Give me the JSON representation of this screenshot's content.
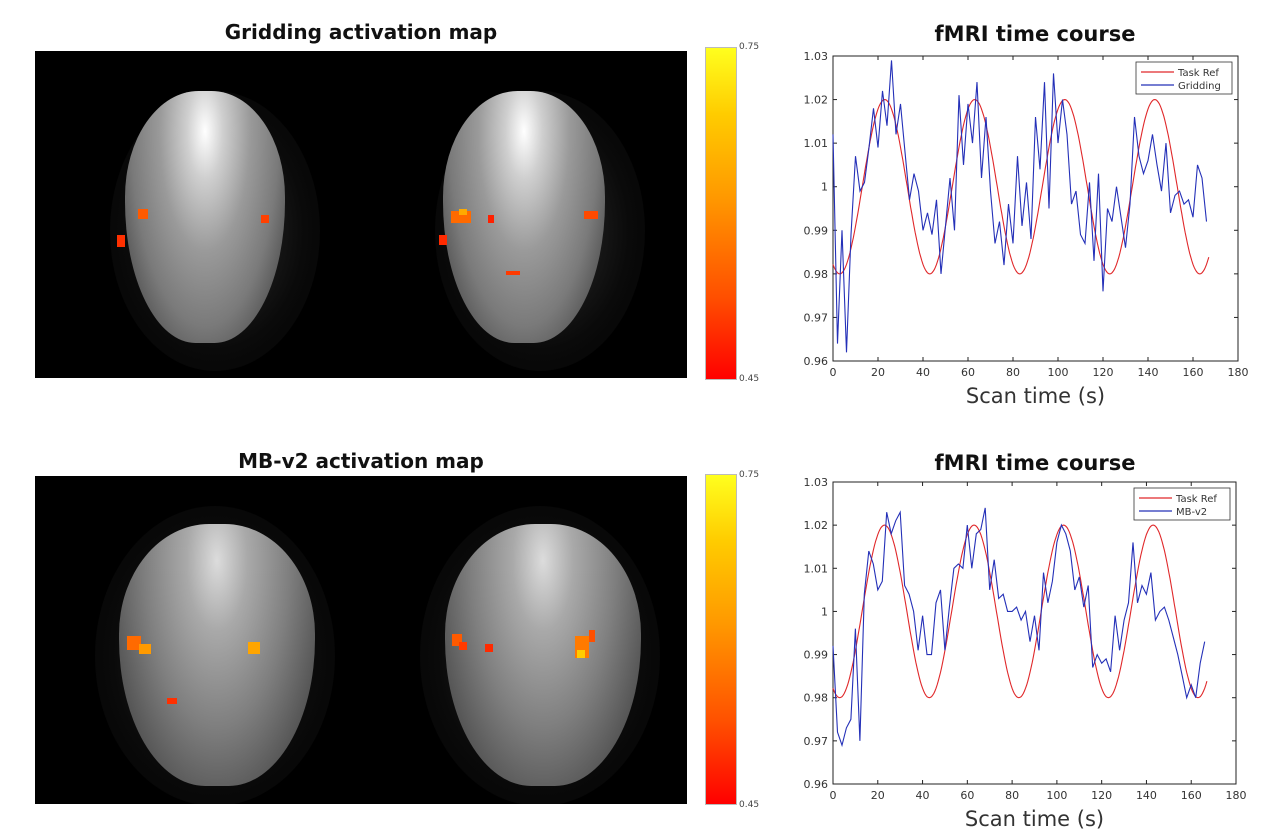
{
  "top": {
    "map_title": "Gridding activation map",
    "colorbar": {
      "max": "0.75",
      "min": "0.45"
    },
    "plot_title": "fMRI time course",
    "xlabel": "Scan time (s)"
  },
  "bottom": {
    "map_title": "MB-v2 activation map",
    "colorbar": {
      "max": "0.75",
      "min": "0.45"
    },
    "plot_title": "fMRI time course",
    "xlabel": "Scan time (s)"
  },
  "colors": {
    "task_ref": "#e0282a",
    "signal": "#2430b8",
    "cb_top": "#ffff1e",
    "cb_bottom": "#ff0000"
  },
  "chart_data": [
    {
      "type": "line",
      "title": "fMRI time course",
      "xlabel": "Scan time (s)",
      "ylabel": "",
      "xlim": [
        0,
        180
      ],
      "ylim": [
        0.96,
        1.03
      ],
      "xticks": [
        0,
        20,
        40,
        60,
        80,
        100,
        120,
        140,
        160,
        180
      ],
      "yticks": [
        "0.96",
        "0.97",
        "0.98",
        "0.99",
        "1",
        "1.01",
        "1.02",
        "1.03"
      ],
      "legend_position": "top-right",
      "series": [
        {
          "name": "Task Ref",
          "color": "#e0282a",
          "kind": "sine",
          "mean": 1.0,
          "amp": 0.02,
          "period": 40,
          "phase_peak": 23,
          "x_end": 167
        },
        {
          "name": "Gridding",
          "color": "#2430b8",
          "x": [
            0,
            2,
            4,
            6,
            8,
            10,
            12,
            14,
            16,
            18,
            20,
            22,
            24,
            26,
            28,
            30,
            32,
            34,
            36,
            38,
            40,
            42,
            44,
            46,
            48,
            50,
            52,
            54,
            56,
            58,
            60,
            62,
            64,
            66,
            68,
            70,
            72,
            74,
            76,
            78,
            80,
            82,
            84,
            86,
            88,
            90,
            92,
            94,
            96,
            98,
            100,
            102,
            104,
            106,
            108,
            110,
            112,
            114,
            116,
            118,
            120,
            122,
            124,
            126,
            128,
            130,
            132,
            134,
            136,
            138,
            140,
            142,
            144,
            146,
            148,
            150,
            152,
            154,
            156,
            158,
            160,
            162,
            164,
            166
          ],
          "y": [
            1.012,
            0.964,
            0.99,
            0.962,
            0.989,
            1.007,
            0.999,
            1.001,
            1.009,
            1.018,
            1.009,
            1.022,
            1.014,
            1.029,
            1.012,
            1.019,
            1.008,
            0.997,
            1.003,
            0.999,
            0.99,
            0.994,
            0.989,
            0.997,
            0.98,
            0.991,
            1.002,
            0.99,
            1.021,
            1.005,
            1.019,
            1.01,
            1.024,
            1.002,
            1.016,
            0.999,
            0.987,
            0.992,
            0.982,
            0.996,
            0.987,
            1.007,
            0.991,
            1.001,
            0.988,
            1.016,
            1.004,
            1.024,
            0.995,
            1.026,
            1.01,
            1.02,
            1.012,
            0.996,
            0.999,
            0.989,
            0.987,
            1.001,
            0.983,
            1.003,
            0.976,
            0.995,
            0.992,
            1.0,
            0.993,
            0.986,
            0.996,
            1.016,
            1.007,
            1.003,
            1.006,
            1.012,
            1.005,
            0.999,
            1.01,
            0.994,
            0.998,
            0.999,
            0.996,
            0.997,
            0.993,
            1.005,
            1.002,
            0.992
          ]
        }
      ]
    },
    {
      "type": "line",
      "title": "fMRI time course",
      "xlabel": "Scan time (s)",
      "ylabel": "",
      "xlim": [
        0,
        180
      ],
      "ylim": [
        0.96,
        1.03
      ],
      "xticks": [
        0,
        20,
        40,
        60,
        80,
        100,
        120,
        140,
        160,
        180
      ],
      "yticks": [
        "0.96",
        "0.97",
        "0.98",
        "0.99",
        "1",
        "1.01",
        "1.02",
        "1.03"
      ],
      "legend_position": "top-right",
      "series": [
        {
          "name": "Task Ref",
          "color": "#e0282a",
          "kind": "sine",
          "mean": 1.0,
          "amp": 0.02,
          "period": 40,
          "phase_peak": 23,
          "x_end": 167
        },
        {
          "name": "MB-v2",
          "color": "#2430b8",
          "x": [
            0,
            2,
            4,
            6,
            8,
            10,
            12,
            14,
            16,
            18,
            20,
            22,
            24,
            26,
            28,
            30,
            32,
            34,
            36,
            38,
            40,
            42,
            44,
            46,
            48,
            50,
            52,
            54,
            56,
            58,
            60,
            62,
            64,
            66,
            68,
            70,
            72,
            74,
            76,
            78,
            80,
            82,
            84,
            86,
            88,
            90,
            92,
            94,
            96,
            98,
            100,
            102,
            104,
            106,
            108,
            110,
            112,
            114,
            116,
            118,
            120,
            122,
            124,
            126,
            128,
            130,
            132,
            134,
            136,
            138,
            140,
            142,
            144,
            146,
            148,
            150,
            152,
            154,
            156,
            158,
            160,
            162,
            164,
            166
          ],
          "y": [
            0.992,
            0.972,
            0.969,
            0.973,
            0.975,
            0.996,
            0.97,
            1.004,
            1.014,
            1.011,
            1.005,
            1.007,
            1.023,
            1.018,
            1.021,
            1.023,
            1.006,
            1.004,
            1.0,
            0.991,
            0.999,
            0.99,
            0.99,
            1.002,
            1.005,
            0.991,
            1.001,
            1.01,
            1.011,
            1.01,
            1.02,
            1.01,
            1.018,
            1.019,
            1.024,
            1.005,
            1.012,
            1.003,
            1.004,
            1.0,
            1.0,
            1.001,
            0.998,
            1.0,
            0.993,
            0.999,
            0.991,
            1.009,
            1.002,
            1.007,
            1.016,
            1.02,
            1.018,
            1.014,
            1.005,
            1.008,
            1.001,
            1.006,
            0.987,
            0.99,
            0.988,
            0.989,
            0.986,
            0.999,
            0.991,
            0.998,
            1.002,
            1.016,
            1.002,
            1.006,
            1.004,
            1.009,
            0.998,
            1.0,
            1.001,
            0.998,
            0.994,
            0.99,
            0.985,
            0.98,
            0.983,
            0.98,
            0.988,
            0.993
          ]
        }
      ]
    }
  ]
}
